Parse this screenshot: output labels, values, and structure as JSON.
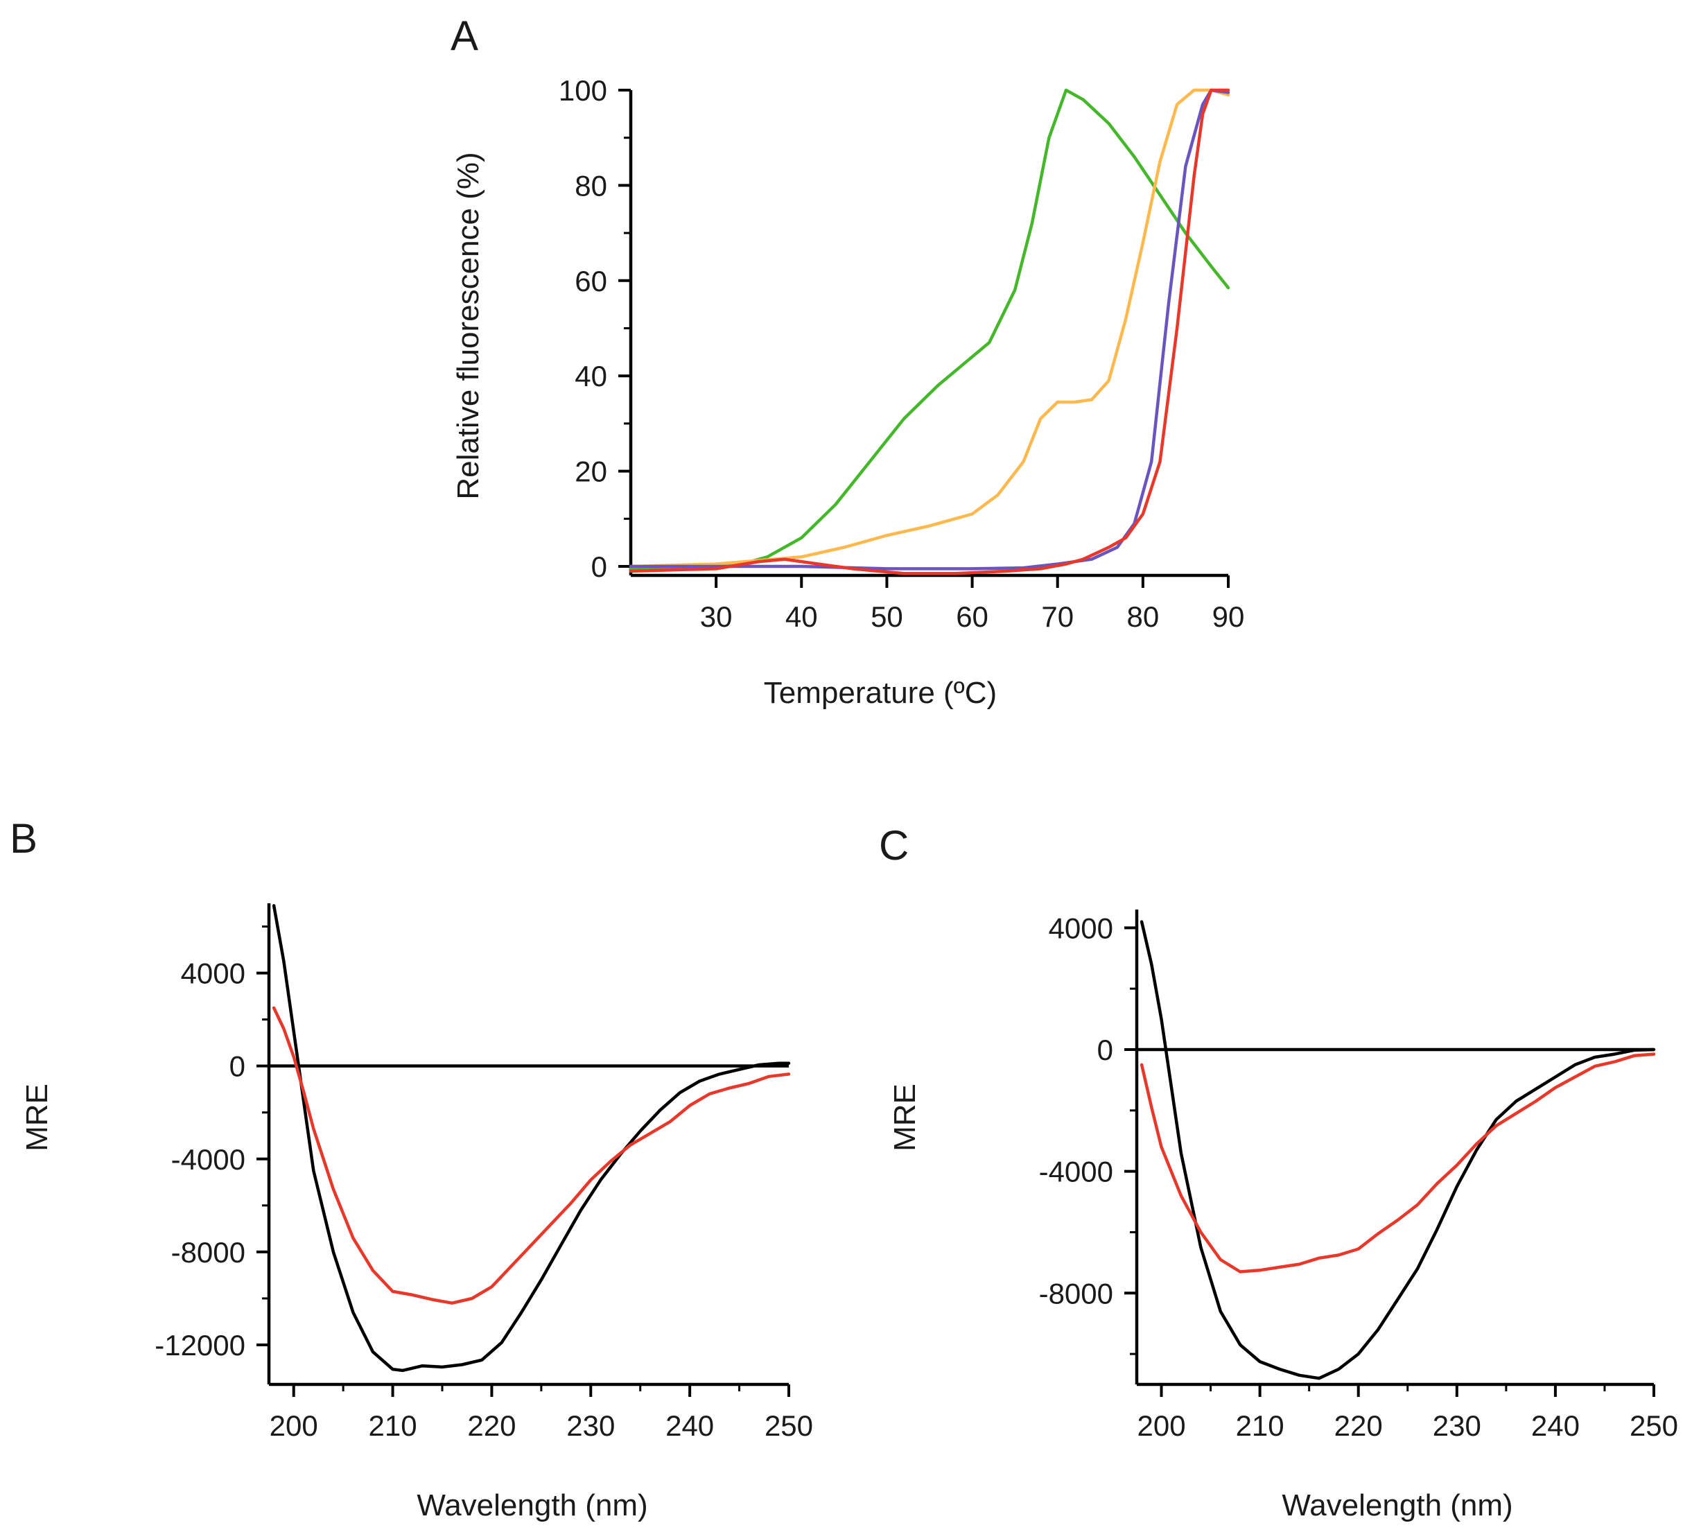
{
  "colors": {
    "green": "#44b82a",
    "orange": "#fdb94d",
    "purple": "#6a55c0",
    "red": "#e8382a",
    "black": "#000000"
  },
  "chart_data": [
    {
      "id": "A",
      "type": "line",
      "panel_label": "A",
      "xlabel": "Temperature (ºC)",
      "ylabel": "Relative fluorescence (%)",
      "xlim": [
        20,
        90
      ],
      "ylim": [
        0,
        100
      ],
      "xticks": [
        30,
        40,
        50,
        60,
        70,
        80,
        90
      ],
      "xtick_labels": [
        "30",
        "40",
        "50",
        "60",
        "70",
        "80",
        "90"
      ],
      "yticks": [
        0,
        20,
        40,
        60,
        80,
        100
      ],
      "ytick_labels": [
        "0",
        "20",
        "40",
        "60",
        "80",
        "100"
      ],
      "series": [
        {
          "name": "green",
          "color": "green",
          "points": [
            [
              20,
              -0.5
            ],
            [
              25,
              -0.5
            ],
            [
              30,
              0
            ],
            [
              33,
              0.5
            ],
            [
              36,
              2
            ],
            [
              40,
              6
            ],
            [
              44,
              13
            ],
            [
              48,
              22
            ],
            [
              52,
              31
            ],
            [
              56,
              38
            ],
            [
              58,
              41
            ],
            [
              62,
              47
            ],
            [
              65,
              58
            ],
            [
              67,
              72
            ],
            [
              69,
              90
            ],
            [
              71,
              100
            ],
            [
              73,
              98
            ],
            [
              76,
              93
            ],
            [
              79,
              86
            ],
            [
              82,
              78
            ],
            [
              85,
              70
            ],
            [
              88,
              63
            ],
            [
              90,
              58.5
            ]
          ]
        },
        {
          "name": "orange",
          "color": "orange",
          "points": [
            [
              20,
              0
            ],
            [
              30,
              0.5
            ],
            [
              40,
              2
            ],
            [
              45,
              4
            ],
            [
              50,
              6.5
            ],
            [
              55,
              8.5
            ],
            [
              60,
              11
            ],
            [
              63,
              15
            ],
            [
              66,
              22
            ],
            [
              68,
              31
            ],
            [
              70,
              34.5
            ],
            [
              72,
              34.5
            ],
            [
              74,
              35
            ],
            [
              76,
              39
            ],
            [
              78,
              52
            ],
            [
              80,
              68
            ],
            [
              82,
              85
            ],
            [
              84,
              97
            ],
            [
              86,
              100
            ],
            [
              88,
              100
            ],
            [
              90,
              99
            ]
          ]
        },
        {
          "name": "purple",
          "color": "purple",
          "points": [
            [
              20,
              0
            ],
            [
              40,
              0
            ],
            [
              50,
              -0.5
            ],
            [
              60,
              -0.5
            ],
            [
              66,
              -0.3
            ],
            [
              70,
              0.5
            ],
            [
              74,
              1.5
            ],
            [
              77,
              4
            ],
            [
              79,
              9
            ],
            [
              81,
              22
            ],
            [
              83,
              55
            ],
            [
              85,
              84
            ],
            [
              87,
              97
            ],
            [
              88,
              100
            ],
            [
              90,
              99.5
            ]
          ]
        },
        {
          "name": "red",
          "color": "red",
          "points": [
            [
              20,
              -1
            ],
            [
              30,
              -0.5
            ],
            [
              35,
              1
            ],
            [
              38,
              1.5
            ],
            [
              42,
              0.5
            ],
            [
              46,
              -0.5
            ],
            [
              52,
              -1.5
            ],
            [
              58,
              -1.5
            ],
            [
              64,
              -1
            ],
            [
              68,
              -0.5
            ],
            [
              71,
              0.5
            ],
            [
              73,
              1.5
            ],
            [
              76,
              4
            ],
            [
              78,
              6
            ],
            [
              80,
              11
            ],
            [
              82,
              22
            ],
            [
              84,
              50
            ],
            [
              86,
              82
            ],
            [
              87,
              95
            ],
            [
              88,
              100
            ],
            [
              90,
              100
            ]
          ]
        }
      ]
    },
    {
      "id": "B",
      "type": "line",
      "panel_label": "B",
      "xlabel": "Wavelength (nm)",
      "ylabel": "MRE",
      "xlim": [
        197.5,
        250
      ],
      "ylim": [
        -13700,
        7000
      ],
      "xticks": [
        200,
        210,
        220,
        230,
        240,
        250
      ],
      "xtick_labels": [
        "200",
        "210",
        "220",
        "230",
        "240",
        "250"
      ],
      "yticks": [
        4000,
        0,
        -4000,
        -8000,
        -12000
      ],
      "ytick_labels": [
        "4000",
        "0",
        "-4000",
        "-8000",
        "-12000"
      ],
      "series": [
        {
          "name": "black",
          "color": "black",
          "points": [
            [
              198,
              6900
            ],
            [
              199,
              4500
            ],
            [
              200,
              1500
            ],
            [
              201,
              -1500
            ],
            [
              202,
              -4500
            ],
            [
              204,
              -8000
            ],
            [
              206,
              -10600
            ],
            [
              208,
              -12300
            ],
            [
              210,
              -13050
            ],
            [
              211,
              -13100
            ],
            [
              213,
              -12900
            ],
            [
              215,
              -12950
            ],
            [
              217,
              -12850
            ],
            [
              219,
              -12650
            ],
            [
              221,
              -11900
            ],
            [
              223,
              -10600
            ],
            [
              225,
              -9200
            ],
            [
              227,
              -7700
            ],
            [
              229,
              -6200
            ],
            [
              231,
              -4900
            ],
            [
              233,
              -3800
            ],
            [
              235,
              -2800
            ],
            [
              237,
              -1900
            ],
            [
              239,
              -1150
            ],
            [
              241,
              -650
            ],
            [
              243,
              -350
            ],
            [
              245,
              -150
            ],
            [
              247,
              50
            ],
            [
              249,
              120
            ],
            [
              250,
              120
            ]
          ]
        },
        {
          "name": "red",
          "color": "red",
          "points": [
            [
              198,
              2500
            ],
            [
              199,
              1600
            ],
            [
              200,
              400
            ],
            [
              201,
              -1100
            ],
            [
              202,
              -2700
            ],
            [
              204,
              -5300
            ],
            [
              206,
              -7400
            ],
            [
              208,
              -8800
            ],
            [
              210,
              -9700
            ],
            [
              212,
              -9850
            ],
            [
              214,
              -10050
            ],
            [
              216,
              -10200
            ],
            [
              218,
              -10000
            ],
            [
              220,
              -9500
            ],
            [
              222,
              -8600
            ],
            [
              224,
              -7700
            ],
            [
              226,
              -6800
            ],
            [
              228,
              -5900
            ],
            [
              230,
              -4900
            ],
            [
              232,
              -4100
            ],
            [
              234,
              -3400
            ],
            [
              236,
              -2900
            ],
            [
              238,
              -2400
            ],
            [
              240,
              -1700
            ],
            [
              242,
              -1200
            ],
            [
              244,
              -950
            ],
            [
              246,
              -750
            ],
            [
              248,
              -450
            ],
            [
              250,
              -350
            ]
          ]
        }
      ]
    },
    {
      "id": "C",
      "type": "line",
      "panel_label": "C",
      "xlabel": "Wavelength (nm)",
      "ylabel": "MRE",
      "xlim": [
        197.5,
        250
      ],
      "ylim": [
        -11000,
        4600
      ],
      "xticks": [
        200,
        210,
        220,
        230,
        240,
        250
      ],
      "xtick_labels": [
        "200",
        "210",
        "220",
        "230",
        "240",
        "250"
      ],
      "yticks": [
        4000,
        0,
        -4000,
        -8000
      ],
      "ytick_labels": [
        "4000",
        "0",
        "-4000",
        "-8000"
      ],
      "series": [
        {
          "name": "black",
          "color": "black",
          "points": [
            [
              198,
              4200
            ],
            [
              199,
              2800
            ],
            [
              200,
              1000
            ],
            [
              201,
              -1200
            ],
            [
              202,
              -3400
            ],
            [
              204,
              -6500
            ],
            [
              206,
              -8600
            ],
            [
              208,
              -9700
            ],
            [
              210,
              -10250
            ],
            [
              212,
              -10500
            ],
            [
              214,
              -10700
            ],
            [
              216,
              -10800
            ],
            [
              218,
              -10500
            ],
            [
              220,
              -10000
            ],
            [
              222,
              -9200
            ],
            [
              224,
              -8200
            ],
            [
              226,
              -7200
            ],
            [
              228,
              -5900
            ],
            [
              230,
              -4500
            ],
            [
              232,
              -3300
            ],
            [
              234,
              -2300
            ],
            [
              236,
              -1700
            ],
            [
              238,
              -1300
            ],
            [
              240,
              -900
            ],
            [
              242,
              -500
            ],
            [
              244,
              -250
            ],
            [
              246,
              -150
            ],
            [
              248,
              -20
            ],
            [
              250,
              0
            ]
          ]
        },
        {
          "name": "red",
          "color": "red",
          "points": [
            [
              198,
              -500
            ],
            [
              199,
              -1900
            ],
            [
              200,
              -3200
            ],
            [
              202,
              -4800
            ],
            [
              204,
              -6000
            ],
            [
              206,
              -6900
            ],
            [
              208,
              -7300
            ],
            [
              210,
              -7250
            ],
            [
              212,
              -7150
            ],
            [
              214,
              -7050
            ],
            [
              216,
              -6850
            ],
            [
              218,
              -6750
            ],
            [
              220,
              -6550
            ],
            [
              222,
              -6050
            ],
            [
              224,
              -5600
            ],
            [
              226,
              -5100
            ],
            [
              228,
              -4400
            ],
            [
              230,
              -3800
            ],
            [
              232,
              -3100
            ],
            [
              234,
              -2500
            ],
            [
              236,
              -2100
            ],
            [
              238,
              -1700
            ],
            [
              240,
              -1250
            ],
            [
              242,
              -900
            ],
            [
              244,
              -550
            ],
            [
              246,
              -400
            ],
            [
              248,
              -200
            ],
            [
              250,
              -150
            ]
          ]
        }
      ]
    }
  ]
}
